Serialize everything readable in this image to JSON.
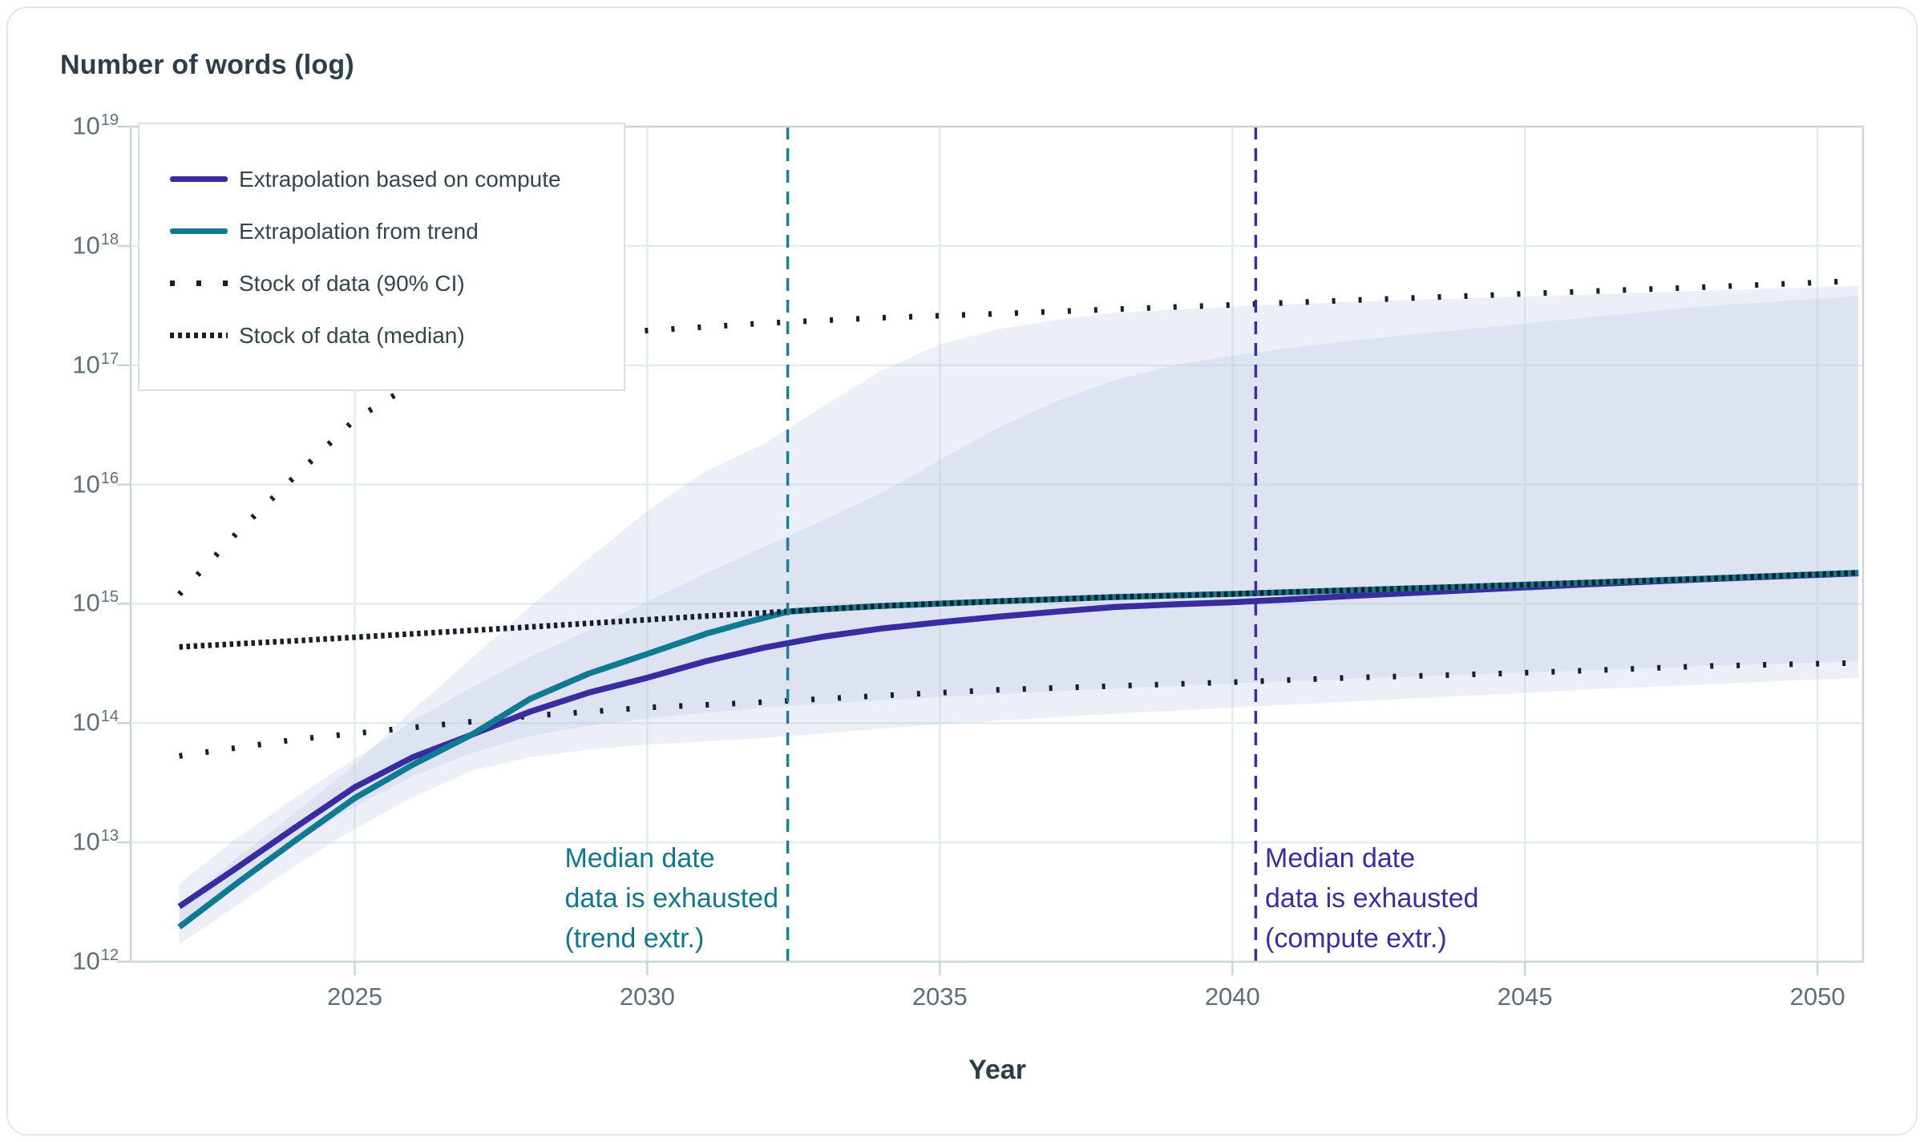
{
  "header": {
    "title": "Number of words (log)"
  },
  "chart_data": {
    "type": "line",
    "title": "Number of words (log)",
    "xlabel": "Year",
    "ylabel": "Number of words (log)",
    "x_axis": {
      "ticks": [
        2025,
        2030,
        2035,
        2040,
        2045,
        2050
      ],
      "lim": [
        2021.17,
        2050.78
      ]
    },
    "y_axis": {
      "scale": "log",
      "tick_exponents": [
        19,
        18,
        17,
        16,
        15,
        14,
        13,
        12
      ],
      "log_lim": [
        12,
        19
      ]
    },
    "grid": true,
    "colors": {
      "compute_line": "#382c9f",
      "trend_line": "#107a92",
      "stock_dots": "#16202a",
      "band_fill": "rgba(186,197,227,0.28)",
      "gridline": "#e2eeec",
      "axis_border": "#c9d6d8",
      "tick_text": "#5c6f79",
      "title_text": "#2c3e48"
    },
    "series": [
      {
        "name": "Extrapolation based on compute",
        "style": "solid",
        "color": "#382c9f",
        "points": [
          [
            2022,
            2900000000000.0
          ],
          [
            2023,
            6200000000000.0
          ],
          [
            2024,
            13500000000000.0
          ],
          [
            2025,
            29000000000000.0
          ],
          [
            2026,
            52000000000000.0
          ],
          [
            2027,
            80000000000000.0
          ],
          [
            2028,
            125000000000000.0
          ],
          [
            2029,
            180000000000000.0
          ],
          [
            2030,
            240000000000000.0
          ],
          [
            2031,
            330000000000000.0
          ],
          [
            2032,
            430000000000000.0
          ],
          [
            2033,
            530000000000000.0
          ],
          [
            2034,
            620000000000000.0
          ],
          [
            2035,
            700000000000000.0
          ],
          [
            2036,
            780000000000000.0
          ],
          [
            2037,
            860000000000000.0
          ],
          [
            2038,
            940000000000000.0
          ],
          [
            2039,
            990000000000000.0
          ],
          [
            2040,
            1030000000000000.0
          ],
          [
            2041,
            1090000000000000.0
          ],
          [
            2042,
            1160000000000000.0
          ],
          [
            2044,
            1300000000000000.0
          ],
          [
            2046,
            1450000000000000.0
          ],
          [
            2048,
            1600000000000000.0
          ],
          [
            2050.7,
            1800000000000000.0
          ]
        ]
      },
      {
        "name": "Extrapolation from trend",
        "style": "solid",
        "color": "#107a92",
        "points": [
          [
            2022,
            1950000000000.0
          ],
          [
            2023,
            4600000000000.0
          ],
          [
            2024,
            10500000000000.0
          ],
          [
            2025,
            23500000000000.0
          ],
          [
            2026,
            45000000000000.0
          ],
          [
            2027,
            80000000000000.0
          ],
          [
            2028,
            160000000000000.0
          ],
          [
            2029,
            260000000000000.0
          ],
          [
            2030,
            380000000000000.0
          ],
          [
            2031,
            560000000000000.0
          ],
          [
            2031.7,
            700000000000000.0
          ],
          [
            2032.4,
            860000000000000.0
          ],
          [
            2033,
            900000000000000.0
          ],
          [
            2034,
            960000000000000.0
          ],
          [
            2036,
            1050000000000000.0
          ],
          [
            2038,
            1140000000000000.0
          ],
          [
            2040,
            1210000000000000.0
          ],
          [
            2042,
            1300000000000000.0
          ],
          [
            2044,
            1390000000000000.0
          ],
          [
            2046,
            1500000000000000.0
          ],
          [
            2048,
            1620000000000000.0
          ],
          [
            2050.7,
            1820000000000000.0
          ]
        ]
      },
      {
        "name": "Stock of data (median)",
        "style": "dotted-dense",
        "color": "#16202a",
        "points": [
          [
            2022,
            435000000000000.0
          ],
          [
            2024,
            490000000000000.0
          ],
          [
            2026,
            560000000000000.0
          ],
          [
            2028,
            640000000000000.0
          ],
          [
            2030,
            735000000000000.0
          ],
          [
            2031,
            790000000000000.0
          ],
          [
            2032,
            840000000000000.0
          ],
          [
            2033,
            900000000000000.0
          ],
          [
            2034,
            960000000000000.0
          ],
          [
            2036,
            1050000000000000.0
          ],
          [
            2038,
            1140000000000000.0
          ],
          [
            2040,
            1210000000000000.0
          ],
          [
            2042,
            1300000000000000.0
          ],
          [
            2044,
            1390000000000000.0
          ],
          [
            2046,
            1500000000000000.0
          ],
          [
            2048,
            1620000000000000.0
          ],
          [
            2050.7,
            1820000000000000.0
          ]
        ]
      },
      {
        "name": "Stock of data upper 90% CI",
        "style": "dotted-sparse",
        "color": "#16202a",
        "points": [
          [
            2022,
            1200000000000000.0
          ],
          [
            2023,
            4000000000000000.0
          ],
          [
            2024,
            1.2e+16
          ],
          [
            2025,
            3.5e+16
          ],
          [
            2026,
            7e+16
          ],
          [
            2027,
            1.1e+17
          ],
          [
            2028,
            1.5e+17
          ],
          [
            2029,
            1.75e+17
          ],
          [
            2030,
            1.95e+17
          ],
          [
            2032,
            2.25e+17
          ],
          [
            2034,
            2.5e+17
          ],
          [
            2036,
            2.7e+17
          ],
          [
            2038,
            2.95e+17
          ],
          [
            2040,
            3.2e+17
          ],
          [
            2042,
            3.5e+17
          ],
          [
            2044,
            3.8e+17
          ],
          [
            2046,
            4.15e+17
          ],
          [
            2048,
            4.5e+17
          ],
          [
            2050.7,
            5.1e+17
          ]
        ]
      },
      {
        "name": "Stock of data lower 90% CI",
        "style": "dotted-sparse",
        "color": "#16202a",
        "points": [
          [
            2022,
            53000000000000.0
          ],
          [
            2024,
            73000000000000.0
          ],
          [
            2026,
            92000000000000.0
          ],
          [
            2028,
            115000000000000.0
          ],
          [
            2030,
            135000000000000.0
          ],
          [
            2032,
            150000000000000.0
          ],
          [
            2034,
            170000000000000.0
          ],
          [
            2036,
            190000000000000.0
          ],
          [
            2038,
            205000000000000.0
          ],
          [
            2040,
            220000000000000.0
          ],
          [
            2042,
            240000000000000.0
          ],
          [
            2044,
            255000000000000.0
          ],
          [
            2046,
            275000000000000.0
          ],
          [
            2048,
            300000000000000.0
          ],
          [
            2050.7,
            320000000000000.0
          ]
        ]
      }
    ],
    "bands": [
      {
        "name": "trend-extrapolation-ci",
        "fill": "rgba(186,197,227,0.28)",
        "upper": [
          [
            2022,
            3000000000000.0
          ],
          [
            2023,
            7500000000000.0
          ],
          [
            2024,
            18000000000000.0
          ],
          [
            2025,
            45000000000000.0
          ],
          [
            2026,
            130000000000000.0
          ],
          [
            2027,
            350000000000000.0
          ],
          [
            2028,
            950000000000000.0
          ],
          [
            2029,
            2400000000000000.0
          ],
          [
            2030,
            6000000000000000.0
          ],
          [
            2031,
            1.3e+16
          ],
          [
            2032,
            2.2e+16
          ],
          [
            2033,
            4.5e+16
          ],
          [
            2034,
            9e+16
          ],
          [
            2035,
            1.5e+17
          ],
          [
            2036,
            2e+17
          ],
          [
            2037,
            2.4e+17
          ],
          [
            2038,
            2.75e+17
          ],
          [
            2040,
            3.1e+17
          ],
          [
            2042,
            3.4e+17
          ],
          [
            2044,
            3.65e+17
          ],
          [
            2046,
            3.9e+17
          ],
          [
            2048,
            4.2e+17
          ],
          [
            2050.7,
            4.6e+17
          ]
        ],
        "lower": [
          [
            2022,
            1400000000000.0
          ],
          [
            2023,
            3000000000000.0
          ],
          [
            2024,
            6500000000000.0
          ],
          [
            2025,
            13000000000000.0
          ],
          [
            2026,
            24000000000000.0
          ],
          [
            2027,
            40000000000000.0
          ],
          [
            2028,
            52000000000000.0
          ],
          [
            2029,
            60000000000000.0
          ],
          [
            2030,
            66000000000000.0
          ],
          [
            2032,
            75000000000000.0
          ],
          [
            2034,
            90000000000000.0
          ],
          [
            2036,
            105000000000000.0
          ],
          [
            2038,
            120000000000000.0
          ],
          [
            2040,
            135000000000000.0
          ],
          [
            2043,
            160000000000000.0
          ],
          [
            2046,
            190000000000000.0
          ],
          [
            2048,
            210000000000000.0
          ],
          [
            2050.7,
            240000000000000.0
          ]
        ]
      },
      {
        "name": "compute-extrapolation-ci",
        "fill": "rgba(186,197,227,0.28)",
        "upper": [
          [
            2022,
            4500000000000.0
          ],
          [
            2023,
            11000000000000.0
          ],
          [
            2024,
            24000000000000.0
          ],
          [
            2025,
            50000000000000.0
          ],
          [
            2026,
            105000000000000.0
          ],
          [
            2027,
            200000000000000.0
          ],
          [
            2028,
            360000000000000.0
          ],
          [
            2029,
            600000000000000.0
          ],
          [
            2030,
            1050000000000000.0
          ],
          [
            2031,
            1800000000000000.0
          ],
          [
            2032,
            3000000000000000.0
          ],
          [
            2033,
            5000000000000000.0
          ],
          [
            2034,
            8500000000000000.0
          ],
          [
            2035,
            1.6e+16
          ],
          [
            2036,
            3e+16
          ],
          [
            2037,
            5e+16
          ],
          [
            2038,
            7.5e+16
          ],
          [
            2039,
            1e+17
          ],
          [
            2040,
            1.2e+17
          ],
          [
            2041,
            1.4e+17
          ],
          [
            2042,
            1.6e+17
          ],
          [
            2044,
            2e+17
          ],
          [
            2046,
            2.5e+17
          ],
          [
            2048,
            3.1e+17
          ],
          [
            2050.7,
            3.8e+17
          ]
        ],
        "lower": [
          [
            2022,
            2100000000000.0
          ],
          [
            2023,
            4600000000000.0
          ],
          [
            2024,
            10000000000000.0
          ],
          [
            2025,
            20000000000000.0
          ],
          [
            2026,
            36000000000000.0
          ],
          [
            2027,
            56000000000000.0
          ],
          [
            2028,
            78000000000000.0
          ],
          [
            2029,
            95000000000000.0
          ],
          [
            2030,
            110000000000000.0
          ],
          [
            2032,
            135000000000000.0
          ],
          [
            2034,
            155000000000000.0
          ],
          [
            2036,
            175000000000000.0
          ],
          [
            2038,
            195000000000000.0
          ],
          [
            2040,
            215000000000000.0
          ],
          [
            2043,
            245000000000000.0
          ],
          [
            2046,
            275000000000000.0
          ],
          [
            2048,
            300000000000000.0
          ],
          [
            2050.7,
            330000000000000.0
          ]
        ]
      }
    ],
    "vlines": [
      {
        "id": "trend",
        "year": 2032.4,
        "color": "#1d7f97",
        "label_lines": [
          "Median date",
          "data is exhausted",
          "(trend extr.)"
        ]
      },
      {
        "id": "compute",
        "year": 2040.4,
        "color": "#3b2da0",
        "label_lines": [
          "Median date",
          "data is exhausted",
          "(compute extr.)"
        ]
      }
    ],
    "legend": {
      "position": "top-left",
      "items": [
        {
          "label": "Extrapolation based on compute",
          "swatch": "solid-compute"
        },
        {
          "label": "Extrapolation from trend",
          "swatch": "solid-trend"
        },
        {
          "label": "Stock of data (90% CI)",
          "swatch": "dots-sparse"
        },
        {
          "label": "Stock of data (median)",
          "swatch": "dots-dense"
        }
      ]
    }
  }
}
